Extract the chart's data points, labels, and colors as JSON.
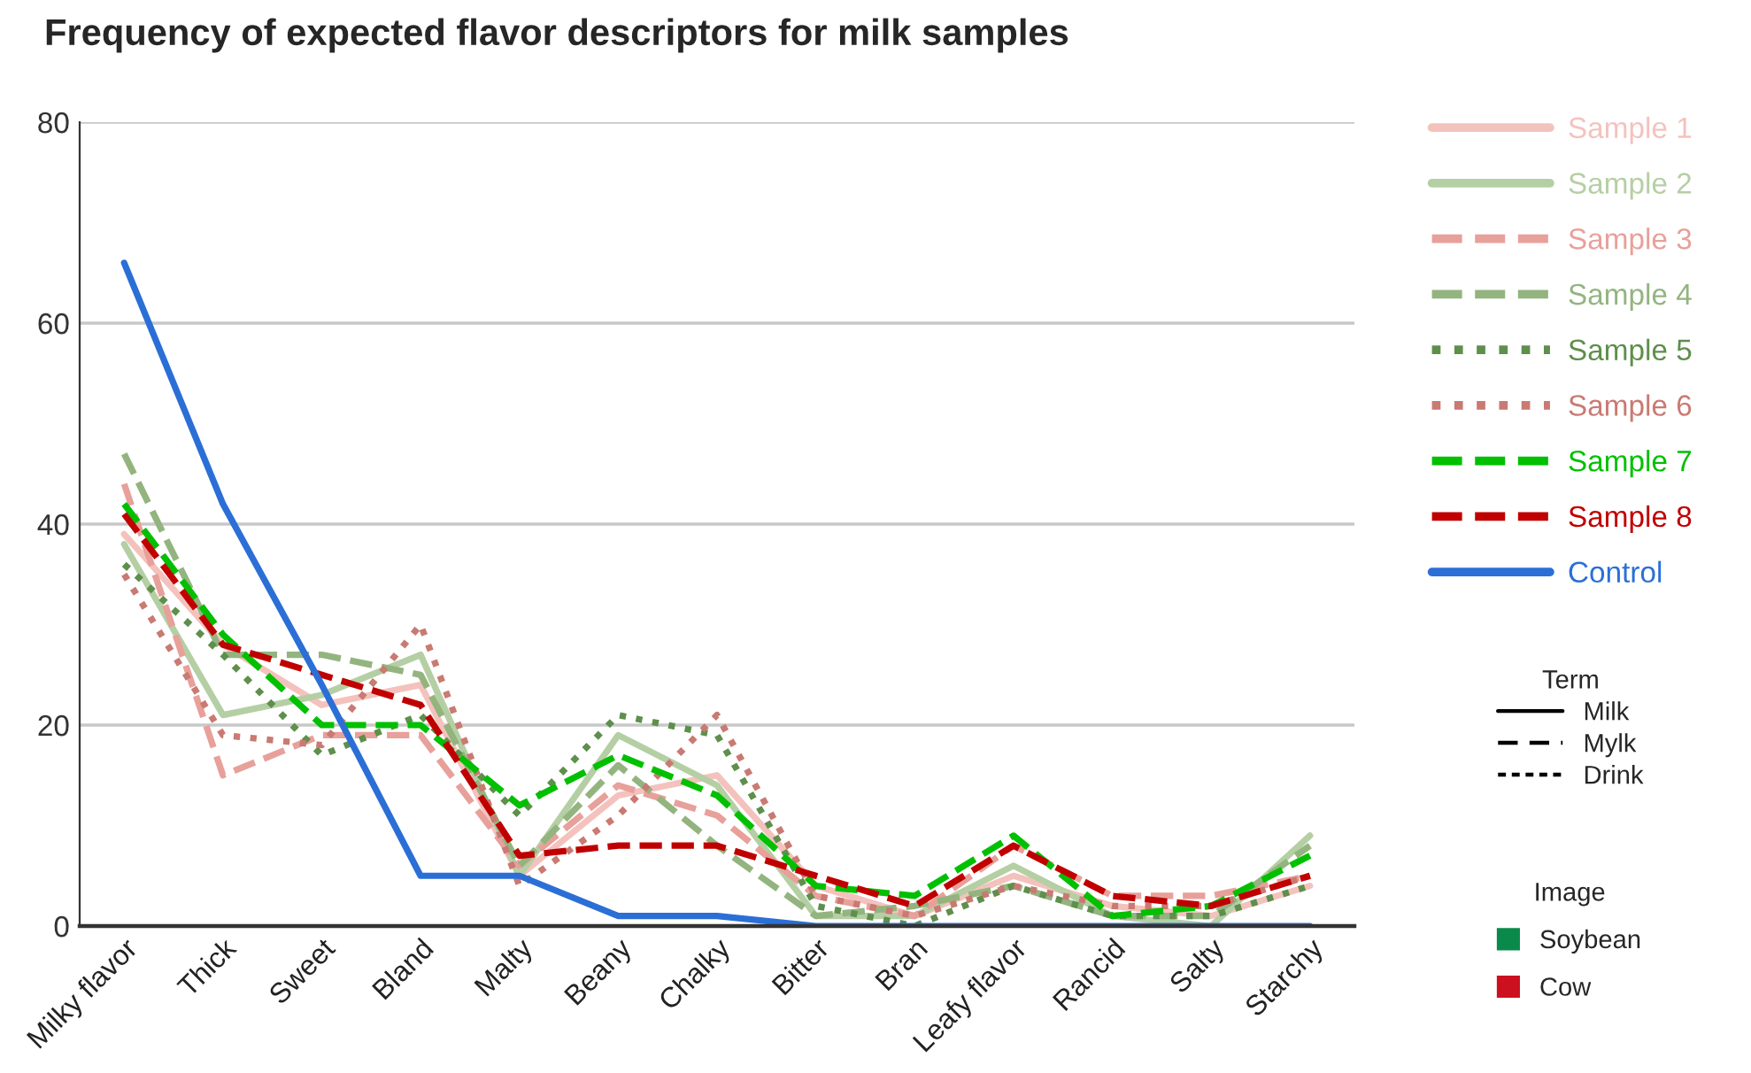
{
  "chart_data": {
    "type": "line",
    "title": "Frequency of expected flavor descriptors for milk samples",
    "categories": [
      "Milky flavor",
      "Thick",
      "Sweet",
      "Bland",
      "Malty",
      "Beany",
      "Chalky",
      "Bitter",
      "Bran",
      "Leafy flavor",
      "Rancid",
      "Salty",
      "Starchy"
    ],
    "series": [
      {
        "name": "Sample 1",
        "color": "#f4c2bd",
        "line_style": "solid",
        "values": [
          39,
          28,
          22,
          24,
          5,
          13,
          15,
          4,
          1,
          5,
          2,
          1,
          4
        ]
      },
      {
        "name": "Sample 2",
        "color": "#b5cfa4",
        "line_style": "solid",
        "values": [
          38,
          21,
          23,
          27,
          5,
          19,
          14,
          1,
          1,
          6,
          1,
          0,
          9
        ]
      },
      {
        "name": "Sample 3",
        "color": "#e8a09a",
        "line_style": "dashed",
        "values": [
          44,
          15,
          19,
          19,
          6,
          14,
          11,
          3,
          1,
          8,
          3,
          3,
          5
        ]
      },
      {
        "name": "Sample 4",
        "color": "#93b47f",
        "line_style": "dashed",
        "values": [
          47,
          27,
          27,
          25,
          6,
          16,
          8,
          1,
          2,
          4,
          1,
          1,
          8
        ]
      },
      {
        "name": "Sample 5",
        "color": "#5e8f4c",
        "line_style": "dotted",
        "values": [
          36,
          27,
          17,
          21,
          11,
          21,
          19,
          2,
          0,
          4,
          1,
          1,
          4
        ]
      },
      {
        "name": "Sample 6",
        "color": "#c97a72",
        "line_style": "dotted",
        "values": [
          35,
          19,
          18,
          30,
          4,
          11,
          21,
          3,
          1,
          4,
          2,
          2,
          5
        ]
      },
      {
        "name": "Sample 7",
        "color": "#00c000",
        "line_style": "dashed",
        "values": [
          42,
          29,
          20,
          20,
          12,
          17,
          13,
          4,
          3,
          9,
          1,
          2,
          7
        ]
      },
      {
        "name": "Sample 8",
        "color": "#c00000",
        "line_style": "dashed",
        "values": [
          41,
          28,
          25,
          22,
          7,
          8,
          8,
          5,
          2,
          8,
          3,
          2,
          5
        ]
      },
      {
        "name": "Control",
        "color": "#2b6fd6",
        "line_style": "solid",
        "values": [
          66,
          42,
          24,
          5,
          5,
          1,
          1,
          0,
          0,
          0,
          0,
          0,
          0
        ]
      }
    ],
    "ylim": [
      0,
      80
    ],
    "yticks": [
      0,
      20,
      40,
      60,
      80
    ],
    "grid": "y",
    "legend": "right",
    "marker": "none",
    "annotations": [
      "Term",
      "Milk",
      "Mylk",
      "Drink",
      "Image",
      "Soybean",
      "Cow"
    ]
  }
}
